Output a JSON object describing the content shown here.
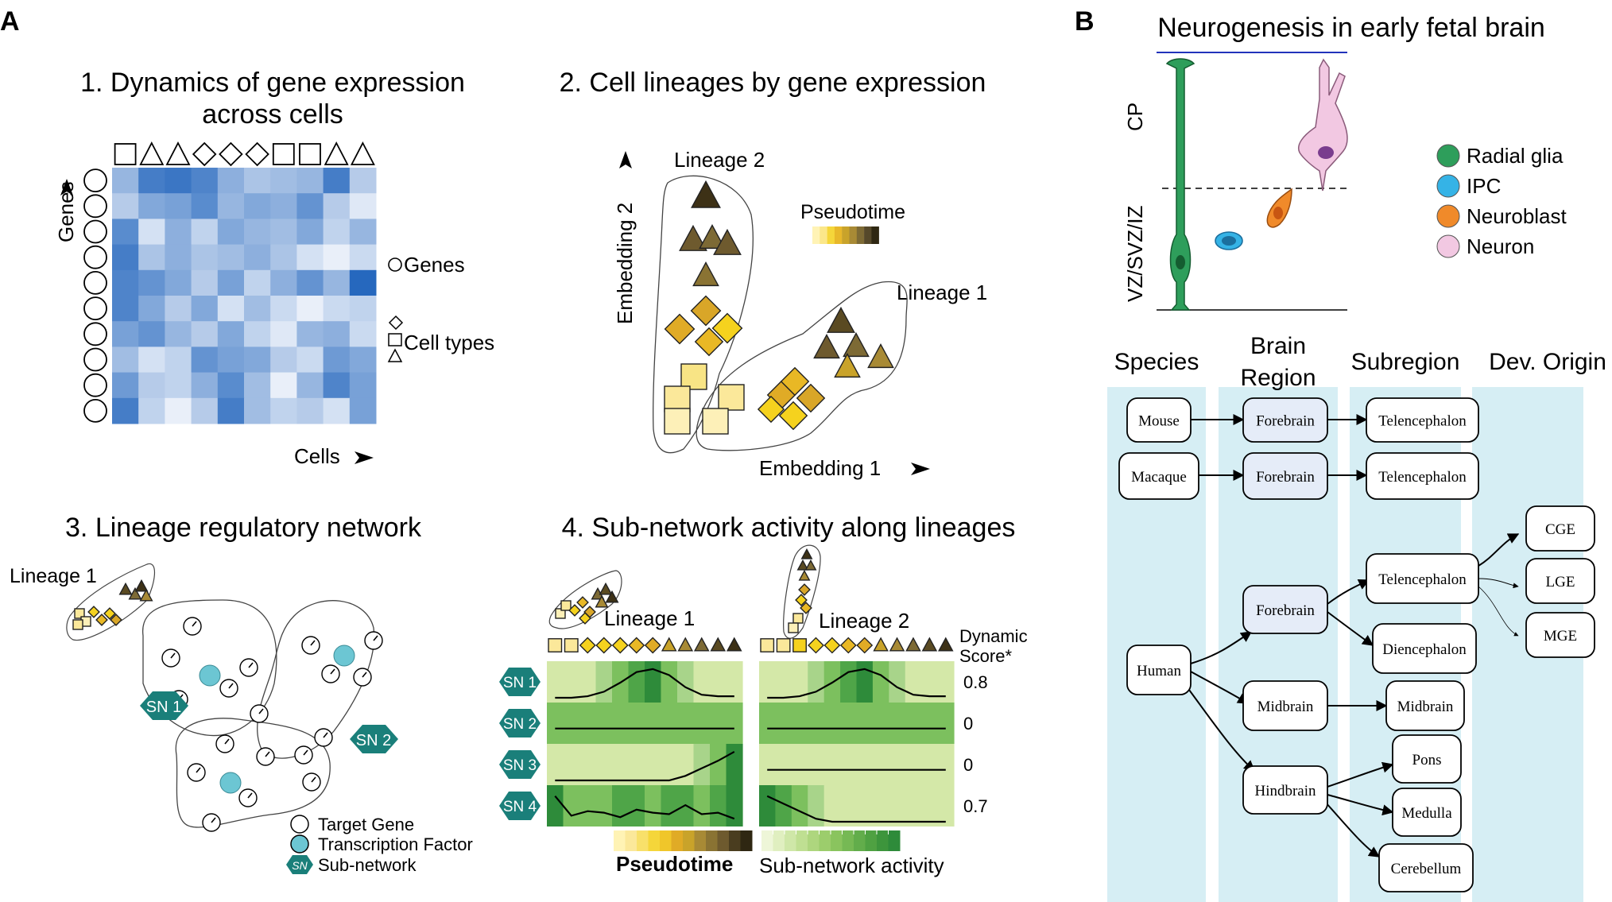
{
  "panel_a": {
    "letter": "A",
    "p1": {
      "title_line1": "1. Dynamics of gene expression",
      "title_line2": "across cells",
      "ylabel": "Genes",
      "xlabel": "Cells",
      "legend_genes": "Genes",
      "legend_celltypes": "Cell types"
    },
    "p2": {
      "title": "2. Cell lineages by gene expression",
      "lineage2": "Lineage 2",
      "lineage1": "Lineage 1",
      "pseudotime": "Pseudotime",
      "embed1": "Embedding 1",
      "embed2": "Embedding 2"
    },
    "p3": {
      "title": "3. Lineage regulatory network",
      "lineage1": "Lineage 1",
      "sn1": "SN 1",
      "sn2": "SN 2",
      "legend_target": "Target Gene",
      "legend_tf": "Transcription Factor",
      "legend_sn_icon": "SN",
      "legend_sn": "Sub-network"
    },
    "p4": {
      "title": "4. Sub-network activity along lineages",
      "lineage1": "Lineage 1",
      "lineage2": "Lineage 2",
      "dynamic_line1": "Dynamic",
      "dynamic_line2": "Score*",
      "rows": [
        {
          "label": "SN 1",
          "score": "0.8"
        },
        {
          "label": "SN 2",
          "score": "0"
        },
        {
          "label": "SN 3",
          "score": "0"
        },
        {
          "label": "SN 4",
          "score": "0.7"
        }
      ],
      "pseudotime": "Pseudotime",
      "subnet_activity": "Sub-network activity"
    }
  },
  "panel_b": {
    "letter": "B",
    "title": "Neurogenesis in early fetal brain",
    "cp": "CP",
    "vz": "VZ/SVZ/IZ",
    "legend": [
      {
        "label": "Radial glia",
        "color": "#2e9e5b"
      },
      {
        "label": "IPC",
        "color": "#35b3e6"
      },
      {
        "label": "Neuroblast",
        "color": "#f08a2a"
      },
      {
        "label": "Neuron",
        "color": "#f2c8e2"
      }
    ],
    "columns": [
      "Species",
      "Brain Region",
      "Subregion",
      "Dev. Origin"
    ],
    "brain_region_line1": "Brain",
    "brain_region_line2": "Region",
    "nodes": {
      "mouse": "Mouse",
      "macaque": "Macaque",
      "human": "Human",
      "fb_mouse": "Forebrain",
      "fb_macaque": "Forebrain",
      "fb_human": "Forebrain",
      "midbrain_region": "Midbrain",
      "hindbrain": "Hindbrain",
      "tel_mouse": "Telencephalon",
      "tel_macaque": "Telencephalon",
      "tel_human": "Telencephalon",
      "diencephalon": "Diencephalon",
      "midbrain_sub": "Midbrain",
      "pons": "Pons",
      "medulla": "Medulla",
      "cerebellum": "Cerebellum",
      "cge": "CGE",
      "lge": "LGE",
      "mge": "MGE"
    }
  },
  "colors": {
    "heat_blue": "#2f6fbf",
    "lineage_yellow": "#f5d63a",
    "lineage_brown": "#4a3a1a",
    "teal": "#1a7f7a",
    "tf_cyan": "#6cc6d3",
    "green_dark": "#2e8b3a",
    "green_light": "#d4e8a8",
    "column_bg": "#d6eef4"
  }
}
